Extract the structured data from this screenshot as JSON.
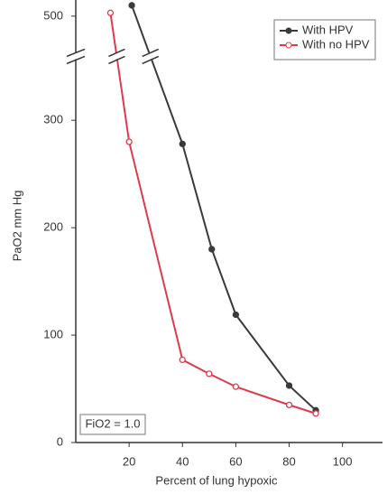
{
  "chart_data": {
    "type": "line",
    "xlabel": "Percent of lung hypoxic",
    "ylabel": "PaO2 mm Hg",
    "annotation": "FiO2 = 1.0",
    "xlim": [
      0,
      115
    ],
    "xticks": [
      20,
      40,
      60,
      80,
      100
    ],
    "ylim": [
      0,
      515
    ],
    "yticks": [
      0,
      100,
      200,
      300,
      500
    ],
    "ybreak": [
      357,
      460
    ],
    "legend": "upper right",
    "series": [
      {
        "name": "With HPV",
        "color": "#3a3a3a",
        "fill": true,
        "x": [
          21,
          40,
          51,
          60,
          80,
          90
        ],
        "values": [
          510,
          278,
          180,
          119,
          53,
          30
        ]
      },
      {
        "name": "With no HPV",
        "color": "#e03a4a",
        "fill": false,
        "x": [
          13,
          20,
          40,
          50,
          60,
          80,
          90
        ],
        "values": [
          503,
          280,
          77,
          64,
          52,
          35,
          27
        ]
      }
    ]
  }
}
